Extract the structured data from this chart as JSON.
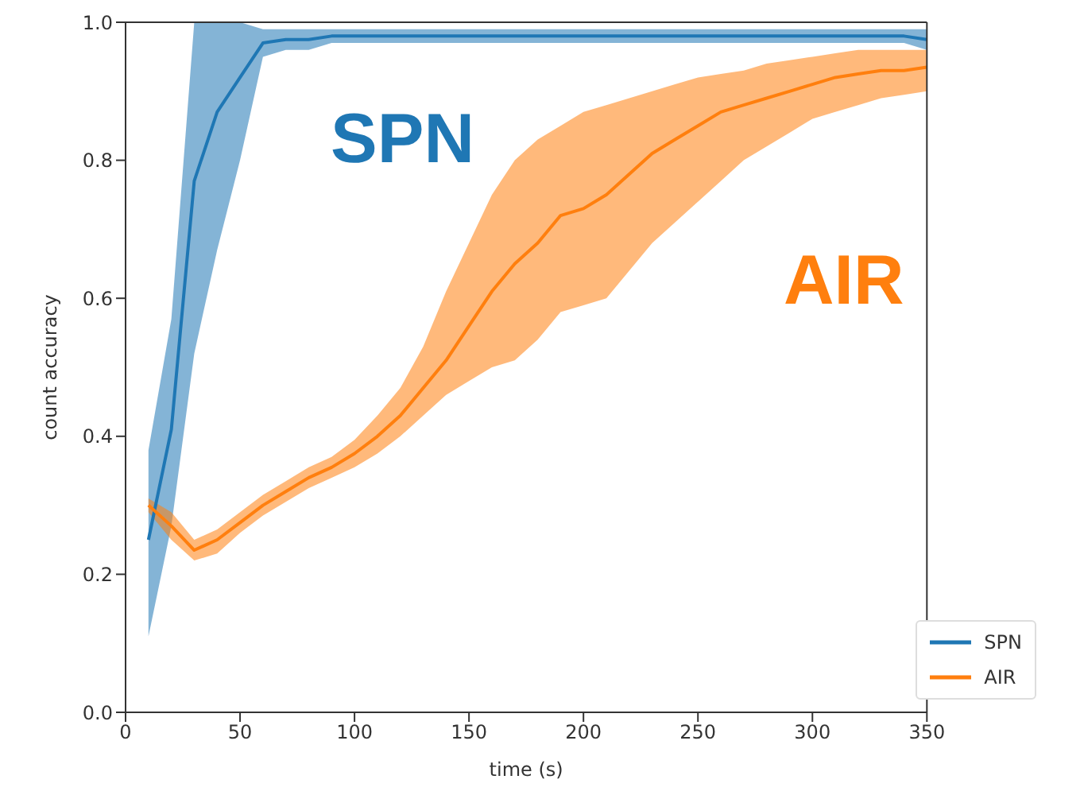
{
  "chart_data": {
    "type": "line",
    "xlabel": "time (s)",
    "ylabel": "count accuracy",
    "x": [
      10,
      20,
      30,
      40,
      50,
      60,
      70,
      80,
      90,
      100,
      110,
      120,
      130,
      140,
      150,
      160,
      170,
      180,
      190,
      200,
      210,
      220,
      230,
      240,
      250,
      260,
      270,
      280,
      290,
      300,
      310,
      320,
      330,
      340,
      350
    ],
    "series": [
      {
        "name": "SPN",
        "color": "#1f77b4",
        "values": [
          0.25,
          0.41,
          0.77,
          0.87,
          0.92,
          0.97,
          0.975,
          0.975,
          0.98,
          0.98,
          0.98,
          0.98,
          0.98,
          0.98,
          0.98,
          0.98,
          0.98,
          0.98,
          0.98,
          0.98,
          0.98,
          0.98,
          0.98,
          0.98,
          0.98,
          0.98,
          0.98,
          0.98,
          0.98,
          0.98,
          0.98,
          0.98,
          0.98,
          0.98,
          0.975
        ],
        "lower": [
          0.11,
          0.27,
          0.52,
          0.67,
          0.8,
          0.95,
          0.96,
          0.96,
          0.97,
          0.97,
          0.97,
          0.97,
          0.97,
          0.97,
          0.97,
          0.97,
          0.97,
          0.97,
          0.97,
          0.97,
          0.97,
          0.97,
          0.97,
          0.97,
          0.97,
          0.97,
          0.97,
          0.97,
          0.97,
          0.97,
          0.97,
          0.97,
          0.97,
          0.97,
          0.96
        ],
        "upper": [
          0.38,
          0.57,
          1.0,
          1.0,
          1.0,
          0.99,
          0.99,
          0.99,
          0.99,
          0.99,
          0.99,
          0.99,
          0.99,
          0.99,
          0.99,
          0.99,
          0.99,
          0.99,
          0.99,
          0.99,
          0.99,
          0.99,
          0.99,
          0.99,
          0.99,
          0.99,
          0.99,
          0.99,
          0.99,
          0.99,
          0.99,
          0.99,
          0.99,
          0.99,
          0.99
        ]
      },
      {
        "name": "AIR",
        "color": "#ff7f0e",
        "values": [
          0.3,
          0.27,
          0.235,
          0.25,
          0.275,
          0.3,
          0.32,
          0.34,
          0.355,
          0.375,
          0.4,
          0.43,
          0.47,
          0.51,
          0.56,
          0.61,
          0.65,
          0.68,
          0.72,
          0.73,
          0.75,
          0.78,
          0.81,
          0.83,
          0.85,
          0.87,
          0.88,
          0.89,
          0.9,
          0.91,
          0.92,
          0.925,
          0.93,
          0.93,
          0.935
        ],
        "lower": [
          0.29,
          0.25,
          0.22,
          0.23,
          0.26,
          0.285,
          0.305,
          0.325,
          0.34,
          0.355,
          0.375,
          0.4,
          0.43,
          0.46,
          0.48,
          0.5,
          0.51,
          0.54,
          0.58,
          0.59,
          0.6,
          0.64,
          0.68,
          0.71,
          0.74,
          0.77,
          0.8,
          0.82,
          0.84,
          0.86,
          0.87,
          0.88,
          0.89,
          0.895,
          0.9
        ],
        "upper": [
          0.31,
          0.29,
          0.25,
          0.265,
          0.29,
          0.315,
          0.335,
          0.355,
          0.37,
          0.395,
          0.43,
          0.47,
          0.53,
          0.61,
          0.68,
          0.75,
          0.8,
          0.83,
          0.85,
          0.87,
          0.88,
          0.89,
          0.9,
          0.91,
          0.92,
          0.925,
          0.93,
          0.94,
          0.945,
          0.95,
          0.955,
          0.96,
          0.96,
          0.96,
          0.96
        ]
      }
    ],
    "xlim": [
      0,
      350
    ],
    "xticks": [
      0,
      50,
      100,
      150,
      200,
      250,
      300,
      350
    ],
    "ylim": [
      0,
      1
    ],
    "yticks": [
      {
        "value": 0,
        "label": "0.0"
      },
      {
        "value": 0.2,
        "label": "0.2"
      },
      {
        "value": 0.4,
        "label": "0.4"
      },
      {
        "value": 0.6,
        "label": "0.6"
      },
      {
        "value": 0.8,
        "label": "0.8"
      },
      {
        "value": 1,
        "label": "1.0"
      }
    ],
    "annotations": [
      "SPN",
      "AIR"
    ],
    "legend": "bottom right"
  }
}
